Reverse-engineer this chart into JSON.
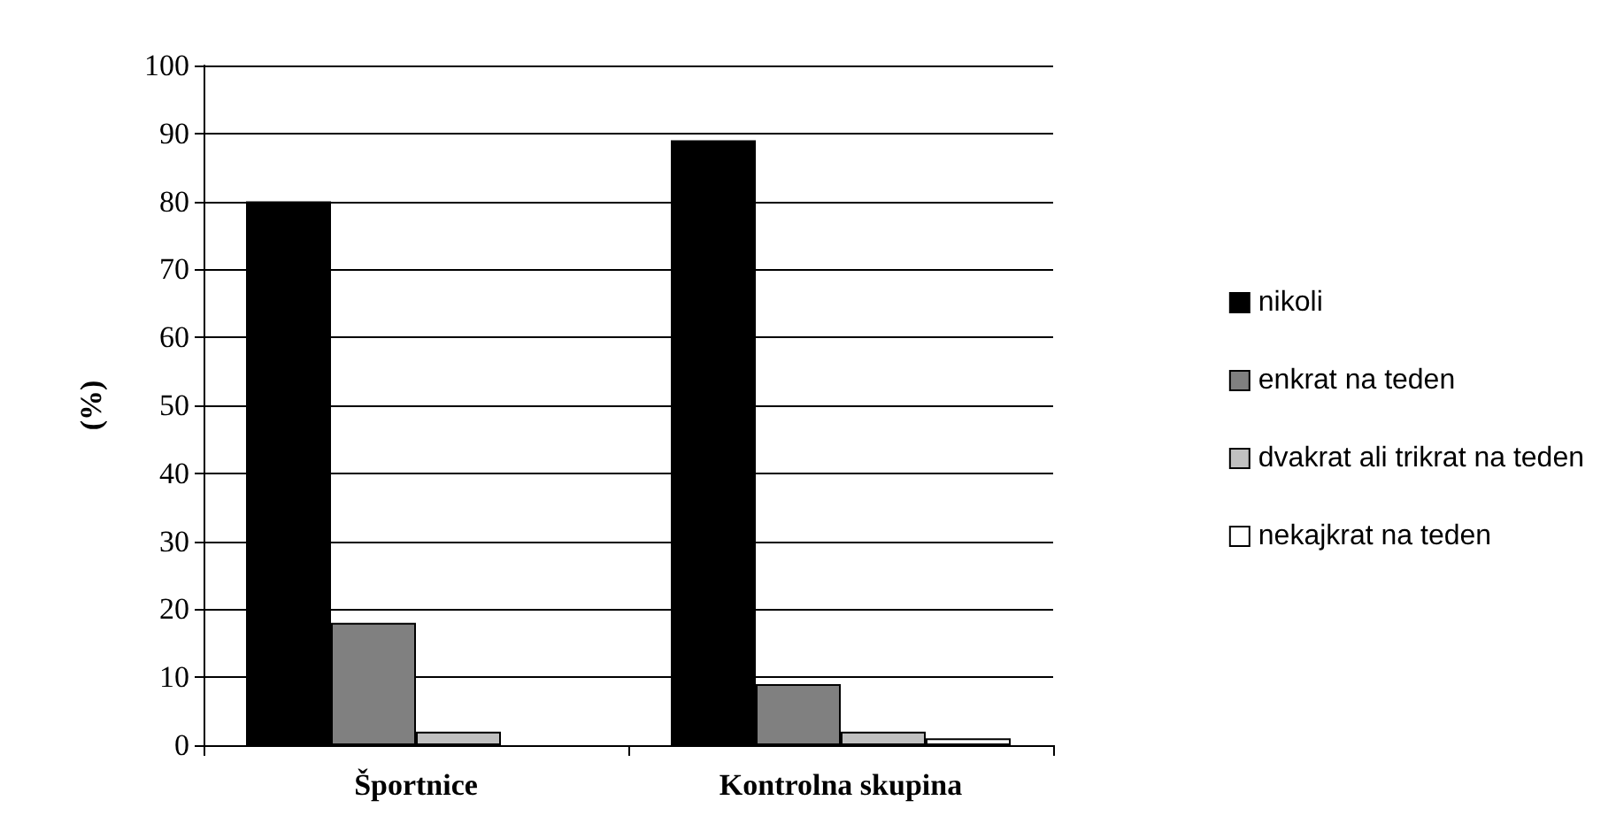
{
  "chart_data": {
    "type": "bar",
    "ylabel": "(%)",
    "categories": [
      "Športnice",
      "Kontrolna skupina"
    ],
    "series": [
      {
        "name": "nikoli",
        "color": "#000000",
        "values": [
          80,
          89
        ]
      },
      {
        "name": "enkrat na teden",
        "color": "#808080",
        "values": [
          18,
          9
        ]
      },
      {
        "name": "dvakrat ali trikrat na teden",
        "color": "#c0c0c0",
        "values": [
          2,
          2
        ]
      },
      {
        "name": "nekajkrat na teden",
        "color": "#ffffff",
        "values": [
          0,
          1
        ]
      }
    ],
    "ylim": [
      0,
      100
    ],
    "yticks": [
      0,
      10,
      20,
      30,
      40,
      50,
      60,
      70,
      80,
      90,
      100
    ],
    "grid": "y",
    "legend": "right"
  }
}
